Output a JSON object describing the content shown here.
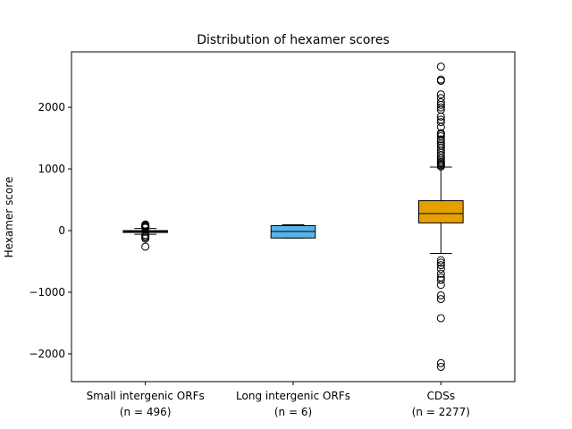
{
  "chart_data": {
    "type": "boxplot",
    "title": "Distribution of hexamer scores",
    "xlabel": "",
    "ylabel": "Hexamer score",
    "ylim": [
      -2450,
      2900
    ],
    "yticks": [
      -2000,
      -1000,
      0,
      1000,
      2000
    ],
    "ytick_labels": [
      "−2000",
      "−1000",
      "0",
      "1000",
      "2000"
    ],
    "grid": false,
    "series": [
      {
        "name": "Small intergenic ORFs",
        "label_line1": "Small intergenic ORFs",
        "label_line2": "(n = 496)",
        "color": "#555555",
        "q1": -30,
        "median": -15,
        "q3": 0,
        "whisker_low": -60,
        "whisker_high": 35,
        "outliers": [
          100,
          85,
          75,
          60,
          50,
          45,
          -70,
          -90,
          -110,
          -130,
          -260
        ]
      },
      {
        "name": "Long intergenic ORFs",
        "label_line1": "Long intergenic ORFs",
        "label_line2": "(n = 6)",
        "color": "#56b4e9",
        "q1": -120,
        "median": -15,
        "q3": 80,
        "whisker_low": -120,
        "whisker_high": 95,
        "outliers": []
      },
      {
        "name": "CDSs",
        "label_line1": "CDSs",
        "label_line2": "(n = 2277)",
        "color": "#e69f00",
        "q1": 125,
        "median": 275,
        "q3": 485,
        "whisker_low": -370,
        "whisker_high": 1030,
        "outliers": [
          2660,
          2450,
          2430,
          2210,
          2150,
          2080,
          2040,
          2000,
          1960,
          1850,
          1800,
          1760,
          1680,
          1580,
          1560,
          1530,
          1480,
          1450,
          1410,
          1380,
          1340,
          1300,
          1260,
          1220,
          1180,
          1150,
          1120,
          1100,
          1080,
          1060,
          1040,
          -480,
          -520,
          -560,
          -620,
          -700,
          -760,
          -800,
          -880,
          -1050,
          -1110,
          -1420,
          -2150,
          -2210
        ]
      }
    ]
  }
}
